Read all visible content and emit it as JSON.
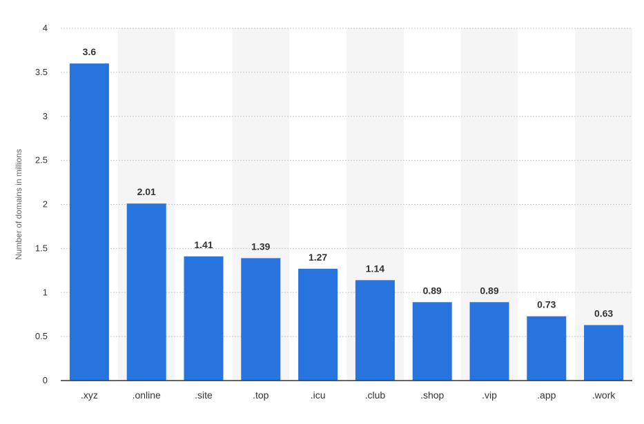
{
  "chart_data": {
    "type": "bar",
    "categories": [
      ".xyz",
      ".online",
      ".site",
      ".top",
      ".icu",
      ".club",
      ".shop",
      ".vip",
      ".app",
      ".work"
    ],
    "values": [
      3.6,
      2.01,
      1.41,
      1.39,
      1.27,
      1.14,
      0.89,
      0.89,
      0.73,
      0.63
    ],
    "value_labels": [
      "3.6",
      "2.01",
      "1.41",
      "1.39",
      "1.27",
      "1.14",
      "0.89",
      "0.89",
      "0.73",
      "0.63"
    ],
    "ylabel": "Number of domains in millions",
    "xlabel": "",
    "ylim": [
      0,
      4
    ],
    "yticks": [
      0,
      0.5,
      1,
      1.5,
      2,
      2.5,
      3,
      3.5,
      4
    ],
    "ytick_labels": [
      "0",
      "0.5",
      "1",
      "1.5",
      "2",
      "2.5",
      "3",
      "3.5",
      "4"
    ],
    "grid": true,
    "alternating_bands": true,
    "bar_color": "#2874de",
    "band_color": "#f5f5f5"
  }
}
